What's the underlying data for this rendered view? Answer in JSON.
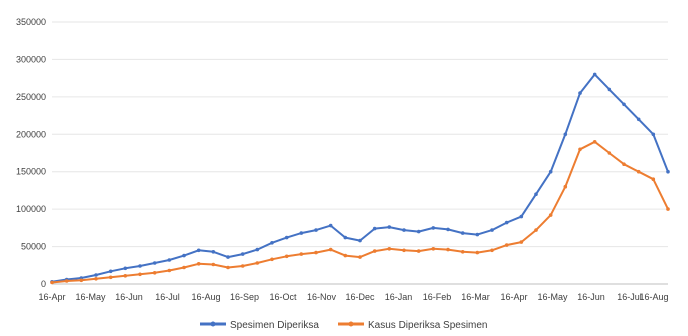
{
  "chart_data": {
    "type": "line",
    "title": "",
    "xlabel": "",
    "ylabel": "",
    "x_tick_labels": [
      "16-Apr",
      "16-May",
      "16-Jun",
      "16-Jul",
      "16-Aug",
      "16-Sep",
      "16-Oct",
      "16-Nov",
      "16-Dec",
      "16-Jan",
      "16-Feb",
      "16-Mar",
      "16-Apr",
      "16-May",
      "16-Jun",
      "16-Jul",
      "16-Aug"
    ],
    "y_ticks": [
      0,
      50000,
      100000,
      150000,
      200000,
      250000,
      300000,
      350000
    ],
    "ylim": [
      0,
      350000
    ],
    "grid": "horizontal",
    "legend_position": "bottom",
    "series": [
      {
        "name": "Spesimen Diperiksa",
        "color": "#4472C4",
        "values": [
          3000,
          6000,
          8000,
          12000,
          17000,
          21000,
          24000,
          28000,
          32000,
          38000,
          45000,
          43000,
          36000,
          40000,
          46000,
          55000,
          62000,
          68000,
          72000,
          78000,
          62000,
          58000,
          74000,
          76000,
          72000,
          70000,
          75000,
          73000,
          68000,
          66000,
          72000,
          82000,
          90000,
          120000,
          150000,
          200000,
          255000,
          280000,
          260000,
          240000,
          220000,
          200000,
          150000
        ]
      },
      {
        "name": "Kasus Diperiksa Spesimen",
        "color": "#ED7D31",
        "values": [
          2000,
          4000,
          5000,
          7000,
          9000,
          11000,
          13000,
          15000,
          18000,
          22000,
          27000,
          26000,
          22000,
          24000,
          28000,
          33000,
          37000,
          40000,
          42000,
          46000,
          38000,
          36000,
          44000,
          47000,
          45000,
          44000,
          47000,
          46000,
          43000,
          42000,
          45000,
          52000,
          56000,
          72000,
          92000,
          130000,
          180000,
          190000,
          175000,
          160000,
          150000,
          140000,
          100000
        ]
      }
    ]
  }
}
